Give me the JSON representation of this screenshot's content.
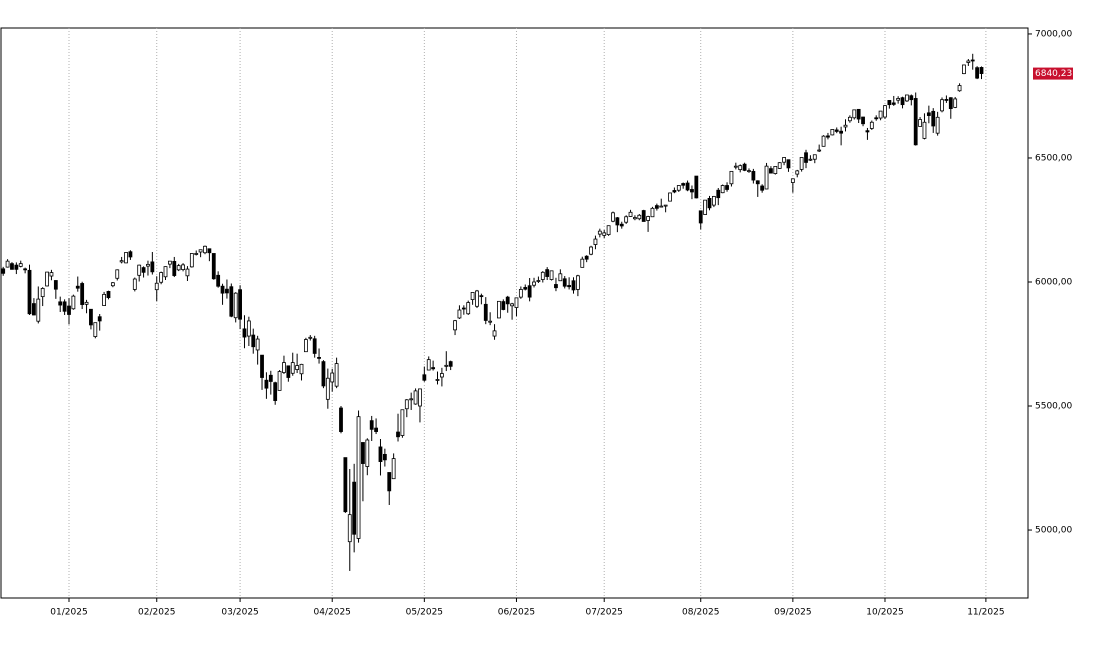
{
  "chart_data": {
    "type": "candlestick",
    "up_color": "#ffffff",
    "down_color": "#000000",
    "outline_color": "#000000",
    "grid": true,
    "ylim": [
      4726,
      7024
    ],
    "yticks": [
      {
        "value": 5000,
        "label": "5000,00"
      },
      {
        "value": 5500,
        "label": "5500,00"
      },
      {
        "value": 6000,
        "label": "6000,00"
      },
      {
        "value": 6500,
        "label": "6500,00"
      },
      {
        "value": 7000,
        "label": "7000,00"
      }
    ],
    "xlim": [
      -0.5,
      233.6
    ],
    "xticks": [
      {
        "value": 15,
        "label": "01/2025"
      },
      {
        "value": 35,
        "label": "02/2025"
      },
      {
        "value": 54,
        "label": "03/2025"
      },
      {
        "value": 75,
        "label": "04/2025"
      },
      {
        "value": 96,
        "label": "05/2025"
      },
      {
        "value": 117,
        "label": "06/2025"
      },
      {
        "value": 137,
        "label": "07/2025"
      },
      {
        "value": 159,
        "label": "08/2025"
      },
      {
        "value": 180,
        "label": "09/2025"
      },
      {
        "value": 201,
        "label": "10/2025"
      },
      {
        "value": 224,
        "label": "11/2025"
      }
    ],
    "last_price": {
      "value": 6840.23,
      "label": "6840,23",
      "color": "#c8102e"
    },
    "open": [
      6053,
      6060,
      6074,
      6068,
      6063,
      6053,
      6047,
      5913,
      5842,
      5941,
      5984,
      6024,
      6006,
      5920,
      5920,
      5903,
      5892,
      5983,
      5994,
      5910,
      5890,
      5780,
      5860,
      5905,
      5962,
      5985,
      6015,
      6081,
      6077,
      6122,
      5970,
      6027,
      6058,
      6064,
      6081,
      5969,
      5999,
      6021,
      6072,
      6083,
      6049,
      6050,
      6025,
      6061,
      6115,
      6121,
      6118,
      6134,
      6115,
      6027,
      5983,
      5971,
      5981,
      5856,
      5969,
      5811,
      5782,
      5786,
      5726,
      5705,
      5604,
      5624,
      5594,
      5563,
      5635,
      5662,
      5632,
      5647,
      5630,
      5719,
      5775,
      5771,
      5696,
      5679,
      5527,
      5597,
      5580,
      5492,
      5292,
      4953,
      5193,
      4966,
      5353,
      5256,
      5441,
      5411,
      5335,
      5305,
      5232,
      5207,
      5395,
      5381,
      5489,
      5529,
      5508,
      5500,
      5626,
      5645,
      5655,
      5605,
      5617,
      5663,
      5679,
      5807,
      5855,
      5895,
      5872,
      5929,
      5902,
      5945,
      5910,
      5842,
      5782,
      5855,
      5921,
      5939,
      5904,
      5897,
      5939,
      5978,
      5985,
      5987,
      6005,
      6010,
      6050,
      6010,
      5990,
      6005,
      6013,
      5986,
      6005,
      5970,
      6059,
      6104,
      6112,
      6151,
      6193,
      6188,
      6191,
      6245,
      6259,
      6233,
      6241,
      6264,
      6255,
      6255,
      6288,
      6248,
      6263,
      6308,
      6305,
      6307,
      6326,
      6369,
      6370,
      6397,
      6399,
      6373,
      6427,
      6287,
      6272,
      6337,
      6310,
      6370,
      6360,
      6389,
      6396,
      6463,
      6453,
      6475,
      6446,
      6446,
      6408,
      6387,
      6375,
      6457,
      6437,
      6458,
      6483,
      6493,
      6401,
      6435,
      6454,
      6521,
      6494,
      6495,
      6532,
      6547,
      6589,
      6593,
      6613,
      6608,
      6625,
      6650,
      6662,
      6696,
      6665,
      6610,
      6619,
      6662,
      6661,
      6665,
      6732,
      6722,
      6733,
      6743,
      6730,
      6751,
      6740,
      6627,
      6579,
      6682,
      6688,
      6600,
      6690,
      6736,
      6743,
      6704,
      6771,
      6840,
      6885,
      6895,
      6864,
      6865
    ],
    "high": [
      6061,
      6092,
      6080,
      6079,
      6086,
      6058,
      6070,
      5935,
      5982,
      5979,
      6040,
      6049,
      6007,
      5941,
      5930,
      5935,
      5949,
      6022,
      6001,
      5928,
      5890,
      5836,
      5871,
      5960,
      5965,
      6000,
      6051,
      6101,
      6119,
      6128,
      6018,
      6070,
      6063,
      6086,
      6121,
      6023,
      6042,
      6063,
      6084,
      6101,
      6073,
      6076,
      6064,
      6116,
      6127,
      6130,
      6147,
      6134,
      6115,
      6043,
      5993,
      6010,
      5994,
      5959,
      5987,
      5866,
      5860,
      5812,
      5783,
      5705,
      5636,
      5642,
      5598,
      5645,
      5703,
      5662,
      5715,
      5711,
      5670,
      5775,
      5786,
      5783,
      5732,
      5685,
      5651,
      5650,
      5695,
      5500,
      5292,
      5246,
      5267,
      5482,
      5353,
      5370,
      5460,
      5450,
      5367,
      5328,
      5232,
      5309,
      5469,
      5485,
      5528,
      5554,
      5571,
      5570,
      5659,
      5700,
      5683,
      5639,
      5654,
      5721,
      5683,
      5847,
      5906,
      5906,
      5925,
      5959,
      5968,
      5953,
      5939,
      5878,
      5830,
      5922,
      5930,
      5944,
      5916,
      5937,
      5982,
      5990,
      6016,
      6017,
      6022,
      6044,
      6060,
      6046,
      6017,
      6051,
      6024,
      6019,
      6019,
      6029,
      6102,
      6108,
      6146,
      6187,
      6215,
      6210,
      6228,
      6284,
      6262,
      6243,
      6269,
      6291,
      6269,
      6274,
      6291,
      6267,
      6303,
      6316,
      6336,
      6310,
      6360,
      6381,
      6390,
      6401,
      6409,
      6389,
      6427,
      6288,
      6330,
      6347,
      6347,
      6379,
      6393,
      6402,
      6446,
      6481,
      6474,
      6481,
      6458,
      6456,
      6410,
      6394,
      6480,
      6467,
      6466,
      6483,
      6503,
      6493,
      6416,
      6452,
      6502,
      6533,
      6511,
      6514,
      6554,
      6592,
      6601,
      6616,
      6623,
      6626,
      6656,
      6672,
      6695,
      6697,
      6666,
      6621,
      6651,
      6672,
      6689,
      6713,
      6733,
      6750,
      6749,
      6747,
      6754,
      6756,
      6764,
      6665,
      6680,
      6711,
      6701,
      6686,
      6744,
      6752,
      6745,
      6746,
      6801,
      6876,
      6899,
      6920,
      6870,
      6869
    ],
    "low": [
      6025,
      6058,
      6050,
      6032,
      6059,
      6035,
      5867,
      5866,
      5833,
      5903,
      5982,
      6007,
      5932,
      5879,
      5867,
      5829,
      5888,
      5961,
      5891,
      5874,
      5809,
      5773,
      5804,
      5905,
      5930,
      5979,
      6006,
      6075,
      6076,
      6089,
      5962,
      6002,
      6018,
      6026,
      6030,
      5923,
      5991,
      6008,
      6056,
      6020,
      6044,
      6043,
      6004,
      6058,
      6107,
      6100,
      6112,
      6084,
      6009,
      5977,
      5908,
      5933,
      5858,
      5837,
      5810,
      5733,
      5742,
      5711,
      5667,
      5565,
      5529,
      5546,
      5505,
      5563,
      5629,
      5598,
      5622,
      5633,
      5603,
      5719,
      5764,
      5695,
      5671,
      5572,
      5489,
      5558,
      5572,
      5390,
      5069,
      4835,
      4910,
      4949,
      5116,
      5221,
      5359,
      5387,
      5220,
      5256,
      5101,
      5207,
      5357,
      5372,
      5455,
      5484,
      5505,
      5434,
      5598,
      5645,
      5643,
      5587,
      5579,
      5641,
      5645,
      5786,
      5851,
      5868,
      5867,
      5908,
      5895,
      5910,
      5830,
      5826,
      5767,
      5855,
      5886,
      5876,
      5848,
      5862,
      5932,
      5966,
      5922,
      5978,
      5996,
      5998,
      6008,
      6006,
      5963,
      6004,
      5974,
      5970,
      5953,
      5943,
      6059,
      6080,
      6108,
      6132,
      6180,
      6177,
      6186,
      6241,
      6201,
      6215,
      6234,
      6262,
      6249,
      6249,
      6244,
      6202,
      6263,
      6288,
      6303,
      6281,
      6325,
      6358,
      6363,
      6376,
      6366,
      6334,
      6337,
      6212,
      6271,
      6289,
      6302,
      6310,
      6358,
      6364,
      6385,
      6454,
      6442,
      6447,
      6440,
      6397,
      6343,
      6360,
      6374,
      6438,
      6433,
      6456,
      6471,
      6444,
      6360,
      6422,
      6445,
      6459,
      6488,
      6479,
      6524,
      6546,
      6575,
      6591,
      6600,
      6551,
      6607,
      6642,
      6655,
      6641,
      6628,
      6573,
      6613,
      6650,
      6652,
      6657,
      6699,
      6710,
      6719,
      6700,
      6726,
      6712,
      6550,
      6627,
      6575,
      6640,
      6601,
      6590,
      6684,
      6722,
      6658,
      6701,
      6767,
      6838,
      6871,
      6856,
      6818,
      6818
    ],
    "close": [
      6035,
      6084,
      6051,
      6051,
      6074,
      6051,
      5872,
      5867,
      5931,
      5974,
      6040,
      6038,
      5971,
      5907,
      5882,
      5869,
      5943,
      5975,
      5909,
      5918,
      5827,
      5836,
      5843,
      5950,
      5937,
      5997,
      6049,
      6086,
      6119,
      6101,
      6012,
      6068,
      6039,
      6071,
      6041,
      5995,
      6038,
      6062,
      6084,
      6026,
      6066,
      6069,
      6052,
      6115,
      6115,
      6130,
      6144,
      6118,
      6013,
      5983,
      5955,
      5956,
      5862,
      5955,
      5850,
      5778,
      5843,
      5739,
      5770,
      5615,
      5572,
      5599,
      5522,
      5639,
      5675,
      5615,
      5675,
      5663,
      5668,
      5768,
      5777,
      5712,
      5693,
      5581,
      5612,
      5633,
      5671,
      5397,
      5074,
      5062,
      4983,
      5457,
      5268,
      5363,
      5406,
      5397,
      5276,
      5283,
      5158,
      5288,
      5376,
      5485,
      5525,
      5529,
      5561,
      5569,
      5604,
      5687,
      5650,
      5607,
      5631,
      5664,
      5660,
      5844,
      5887,
      5893,
      5917,
      5958,
      5964,
      5941,
      5845,
      5842,
      5803,
      5922,
      5889,
      5912,
      5912,
      5936,
      5970,
      5971,
      5939,
      6000,
      6006,
      6039,
      6022,
      6045,
      5977,
      6033,
      5983,
      5981,
      5968,
      6025,
      6092,
      6092,
      6141,
      6173,
      6205,
      6198,
      6227,
      6279,
      6230,
      6226,
      6263,
      6281,
      6260,
      6269,
      6244,
      6264,
      6297,
      6297,
      6306,
      6310,
      6359,
      6363,
      6389,
      6390,
      6371,
      6363,
      6339,
      6238,
      6330,
      6299,
      6345,
      6340,
      6389,
      6373,
      6446,
      6467,
      6469,
      6450,
      6449,
      6411,
      6396,
      6370,
      6467,
      6439,
      6466,
      6481,
      6502,
      6460,
      6416,
      6448,
      6502,
      6482,
      6495,
      6513,
      6532,
      6588,
      6584,
      6615,
      6607,
      6600,
      6632,
      6664,
      6694,
      6657,
      6638,
      6605,
      6644,
      6661,
      6689,
      6711,
      6715,
      6716,
      6740,
      6715,
      6754,
      6735,
      6553,
      6655,
      6644,
      6671,
      6629,
      6664,
      6735,
      6735,
      6699,
      6738,
      6792,
      6875,
      6891,
      6891,
      6822,
      6840.23
    ]
  }
}
